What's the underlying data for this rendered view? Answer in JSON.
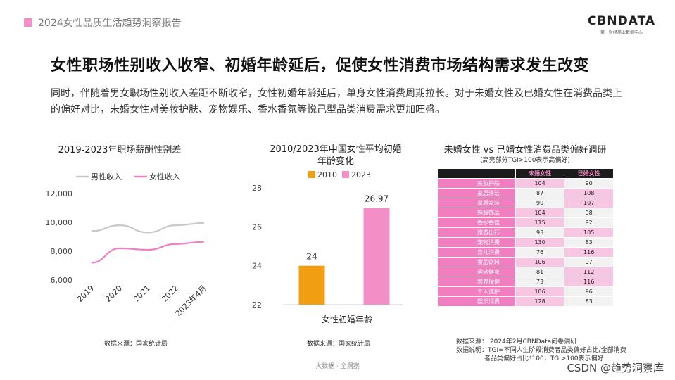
{
  "header": {
    "title": "2024女性品质生活趋势洞察报告"
  },
  "logo": {
    "brand": "CBNDATA",
    "tagline": "第一财经商业数据中心"
  },
  "main": {
    "title": "女性职场性别收入收窄、初婚年龄延后，促使女性消费市场结构需求发生改变",
    "intro": "同时，伴随着男女职场性别收入差距不断收窄，女性初婚年龄延后，单身女性消费周期拉长。对于未婚女性及已婚女性在消费品类上的偏好对比，未婚女性对美妆护肤、宠物娱乐、香水香氛等悦己型品类消费需求更加旺盛。"
  },
  "chart_data": [
    {
      "type": "line",
      "title": "2019-2023年职场薪酬性别差",
      "categories": [
        "2019",
        "2020",
        "2021",
        "2022",
        "2023年4月"
      ],
      "yticks": [
        "6,000",
        "8,000",
        "10,000",
        "12,000"
      ],
      "ylim": [
        6000,
        12000
      ],
      "series": [
        {
          "name": "男性收入",
          "color": "#c8c8c8",
          "values": [
            9400,
            9800,
            9300,
            9800,
            9950
          ]
        },
        {
          "name": "女性收入",
          "color": "#ef7fc3",
          "values": [
            7200,
            8200,
            8100,
            8500,
            8650
          ]
        }
      ],
      "legend": "top",
      "source": "数据来源：国家统计局"
    },
    {
      "type": "bar",
      "title_line1": "2010/2023年中国女性平均初婚",
      "title_line2": "年龄变化",
      "xlabel": "女性初婚年龄",
      "yticks": [
        "22",
        "24",
        "26",
        "28"
      ],
      "ylim": [
        22,
        28
      ],
      "series": [
        {
          "name": "2010",
          "color": "#f29e12",
          "value": 24,
          "label": "24"
        },
        {
          "name": "2023",
          "color": "#f38ec6",
          "value": 26.97,
          "label": "26.97"
        }
      ],
      "legend": "top",
      "source": "数据来源：国家统计局"
    },
    {
      "type": "table",
      "title": "未婚女性 vs 已婚女性消费品类偏好调研",
      "subtitle": "(高亮部分TGI>100表示高偏好)",
      "columns": [
        "",
        "未婚女性",
        "已婚女性"
      ],
      "rows": [
        {
          "category": "美妆护肤",
          "unmarried": "104",
          "married": "90"
        },
        {
          "category": "家居清洁",
          "unmarried": "87",
          "married": "108"
        },
        {
          "category": "家居家装",
          "unmarried": "90",
          "married": "107"
        },
        {
          "category": "鞋服饰品",
          "unmarried": "104",
          "married": "98"
        },
        {
          "category": "香水香氛",
          "unmarried": "115",
          "married": "92"
        },
        {
          "category": "旅游出行",
          "unmarried": "93",
          "married": "105"
        },
        {
          "category": "宠物消费",
          "unmarried": "130",
          "married": "83"
        },
        {
          "category": "育儿消费",
          "unmarried": "76",
          "married": "116"
        },
        {
          "category": "食品饮料",
          "unmarried": "106",
          "married": "97"
        },
        {
          "category": "运动健身",
          "unmarried": "81",
          "married": "112"
        },
        {
          "category": "营养保健",
          "unmarried": "73",
          "married": "116"
        },
        {
          "category": "个人洗护",
          "unmarried": "106",
          "married": "96"
        },
        {
          "category": "娱乐消费",
          "unmarried": "128",
          "married": "83"
        }
      ],
      "colors": {
        "category_bg": "#f27ec2",
        "highlight_bg": "#f7c6e2",
        "plain_bg": "#f2f2f2",
        "header_bg": "#1c1c1c",
        "header_text": "#f38ec6"
      },
      "source_line1": "数据来源：  2024年2月CBNData问卷调研",
      "source_line2": "数据说明：TGI=不同人生阶段消费者品类偏好占比/全部消费",
      "source_line3": "者品类偏好占比*100，TGI>100表示偏好"
    }
  ],
  "footer": {
    "text": "大数据 · 全洞察"
  },
  "credit": {
    "text": "CSDN @趋势洞察库"
  }
}
